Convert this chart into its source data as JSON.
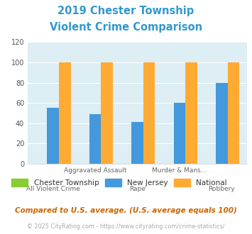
{
  "title_line1": "2019 Chester Township",
  "title_line2": "Violent Crime Comparison",
  "title_color": "#3399cc",
  "categories": [
    "All Violent Crime",
    "Aggravated Assault",
    "Rape",
    "Murder & Mans...",
    "Robbery"
  ],
  "cat_top": [
    "",
    "Aggravated Assault",
    "",
    "Murder & Mans...",
    ""
  ],
  "cat_bot": [
    "All Violent Crime",
    "",
    "Rape",
    "",
    "Robbery"
  ],
  "chester_values": [
    0,
    0,
    0,
    0,
    0
  ],
  "nj_values": [
    55,
    49,
    41,
    60,
    80
  ],
  "national_values": [
    100,
    100,
    100,
    100,
    100
  ],
  "chester_color": "#88cc33",
  "nj_color": "#4499dd",
  "national_color": "#ffaa33",
  "ylim": [
    0,
    120
  ],
  "yticks": [
    0,
    20,
    40,
    60,
    80,
    100,
    120
  ],
  "bg_color": "#ddeef4",
  "legend_labels": [
    "Chester Township",
    "New Jersey",
    "National"
  ],
  "footnote1": "Compared to U.S. average. (U.S. average equals 100)",
  "footnote2": "© 2025 CityRating.com - https://www.cityrating.com/crime-statistics/",
  "footnote1_color": "#cc6600",
  "footnote2_color": "#aaaaaa",
  "footnote2_link_color": "#4499dd"
}
